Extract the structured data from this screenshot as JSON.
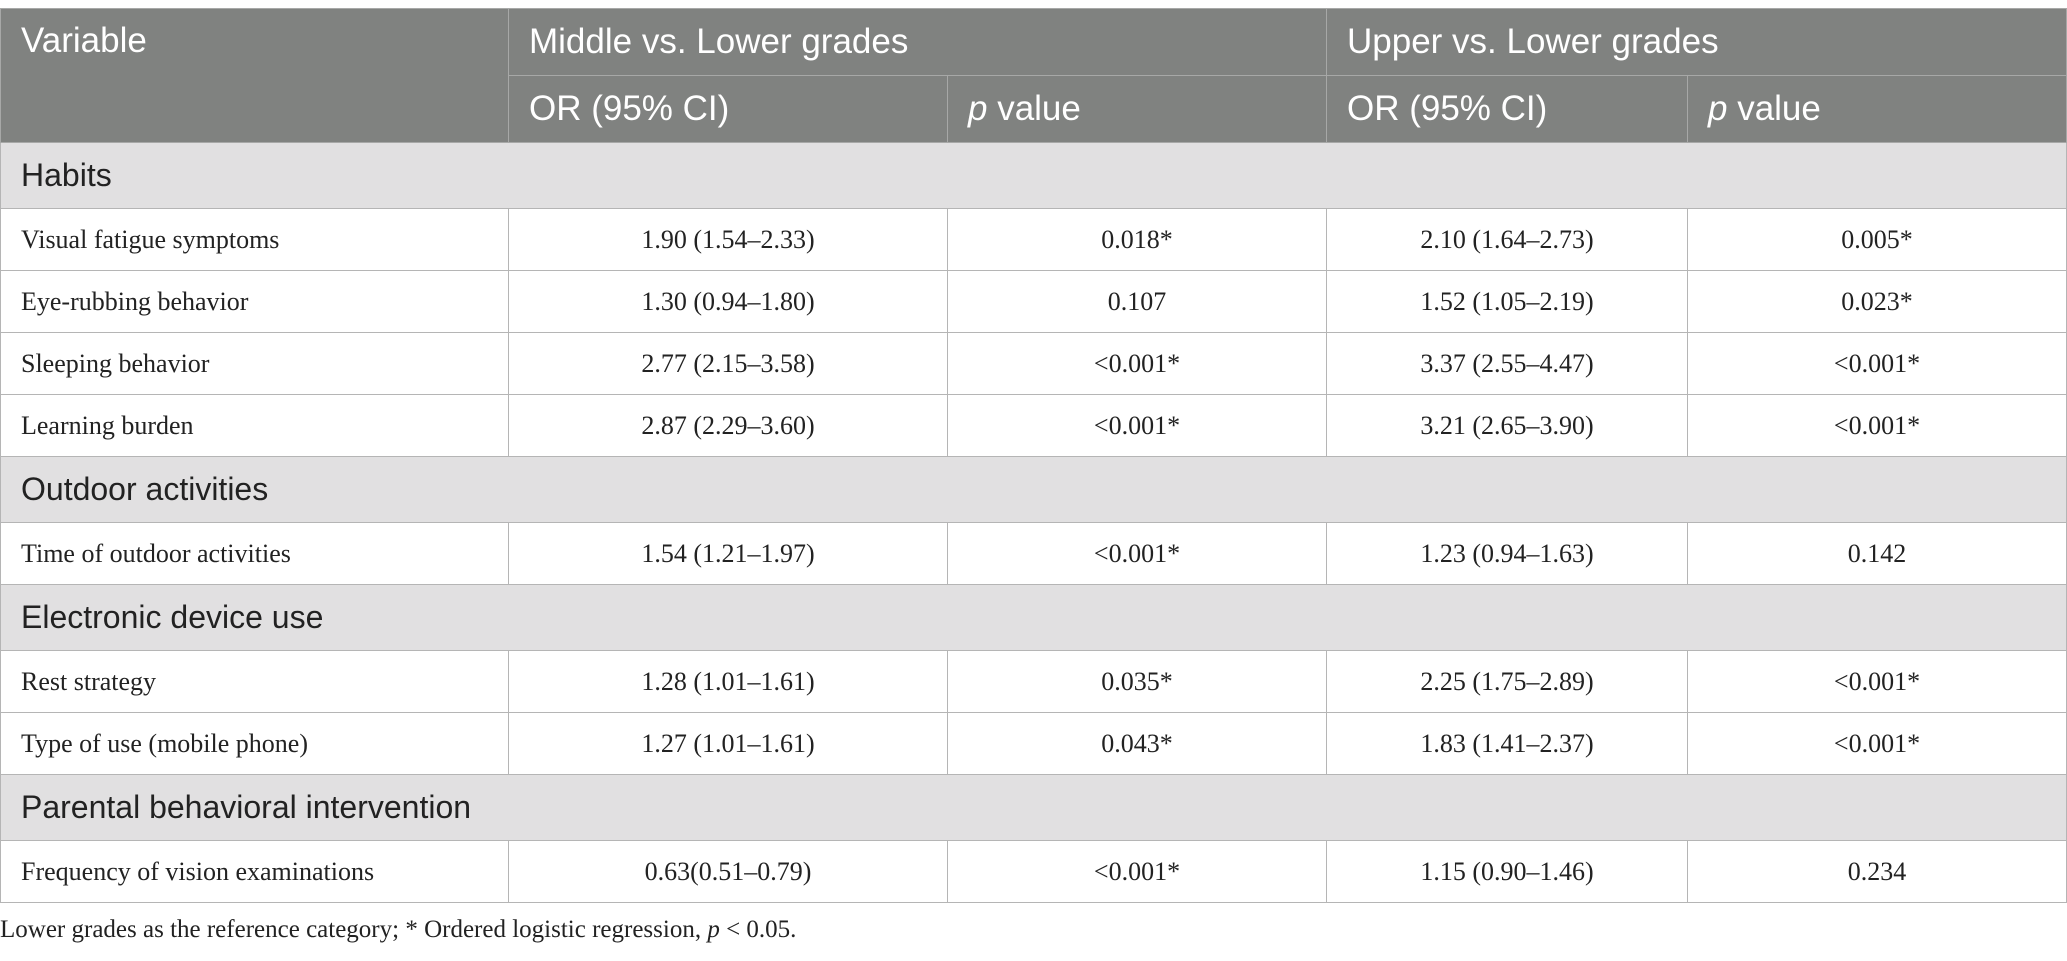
{
  "header": {
    "variable": "Variable",
    "group1": "Middle vs. Lower grades",
    "group2": "Upper vs. Lower grades",
    "or_label": "OR (95% CI)",
    "p_italic": "p",
    "p_rest": " value"
  },
  "sections": [
    {
      "title": "Habits",
      "rows": [
        {
          "variable": "Visual fatigue symptoms",
          "or1": "1.90 (1.54–2.33)",
          "p1": "0.018*",
          "or2": "2.10 (1.64–2.73)",
          "p2": "0.005*"
        },
        {
          "variable": "Eye-rubbing behavior",
          "or1": "1.30 (0.94–1.80)",
          "p1": "0.107",
          "or2": "1.52 (1.05–2.19)",
          "p2": "0.023*"
        },
        {
          "variable": "Sleeping behavior",
          "or1": "2.77 (2.15–3.58)",
          "p1": "<0.001*",
          "or2": "3.37 (2.55–4.47)",
          "p2": "<0.001*"
        },
        {
          "variable": "Learning burden",
          "or1": "2.87 (2.29–3.60)",
          "p1": "<0.001*",
          "or2": "3.21 (2.65–3.90)",
          "p2": "<0.001*"
        }
      ]
    },
    {
      "title": "Outdoor activities",
      "rows": [
        {
          "variable": "Time of outdoor activities",
          "or1": "1.54 (1.21–1.97)",
          "p1": "<0.001*",
          "or2": "1.23 (0.94–1.63)",
          "p2": "0.142"
        }
      ]
    },
    {
      "title": "Electronic device use",
      "rows": [
        {
          "variable": "Rest strategy",
          "or1": "1.28 (1.01–1.61)",
          "p1": "0.035*",
          "or2": "2.25 (1.75–2.89)",
          "p2": "<0.001*"
        },
        {
          "variable": "Type of use (mobile phone)",
          "or1": "1.27 (1.01–1.61)",
          "p1": "0.043*",
          "or2": "1.83 (1.41–2.37)",
          "p2": "<0.001*"
        }
      ]
    },
    {
      "title": "Parental behavioral intervention",
      "rows": [
        {
          "variable": "Frequency of vision examinations",
          "or1": "0.63(0.51–0.79)",
          "p1": "<0.001*",
          "or2": "1.15 (0.90–1.46)",
          "p2": "0.234"
        }
      ]
    }
  ],
  "footnote": {
    "before": "Lower grades as the reference category; * Ordered logistic regression, ",
    "p_italic": "p",
    "after": " < 0.05."
  }
}
